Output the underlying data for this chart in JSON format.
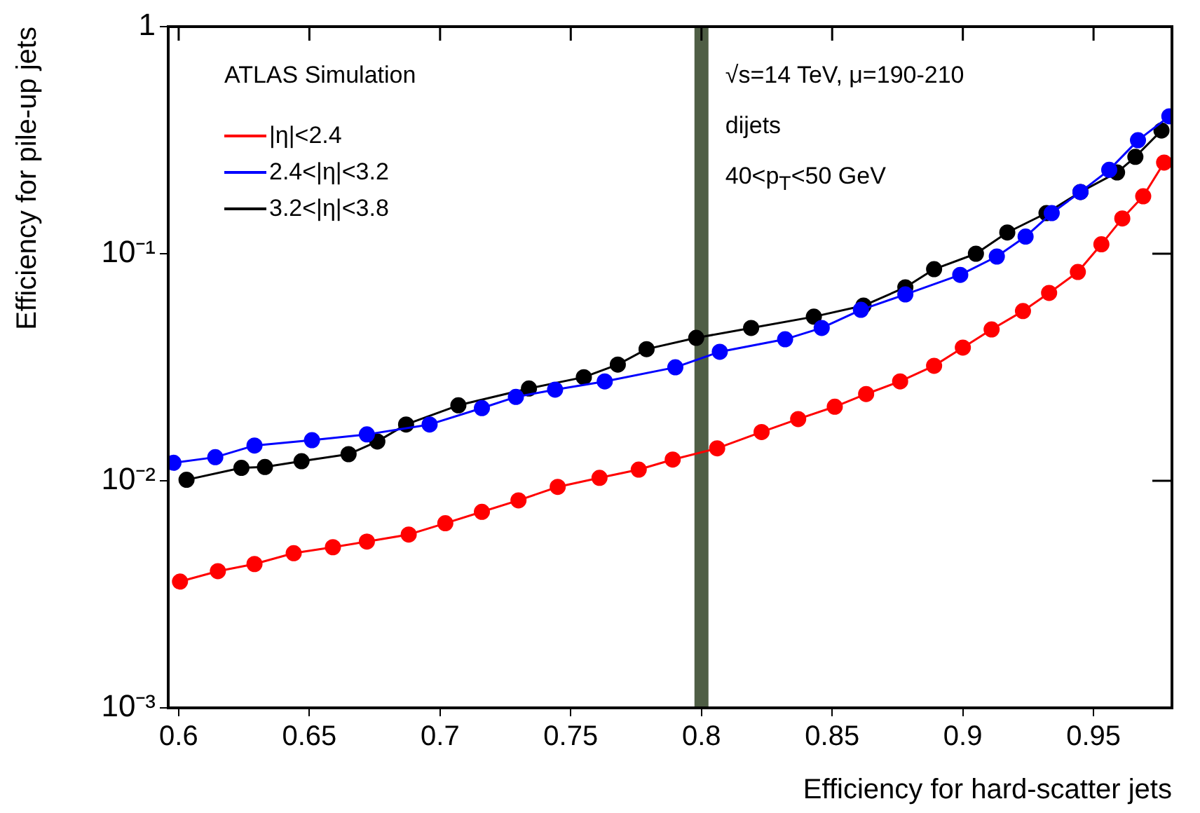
{
  "chart_data": {
    "type": "line",
    "xlabel": "Efficiency for hard-scatter jets",
    "ylabel": "Efficiency for pile-up jets",
    "annotations": [
      "ATLAS Simulation",
      "√s=14 TeV, μ=190-210",
      "dijets",
      "40<p$_{T}$<50 GeV"
    ],
    "log": "y",
    "grid": false,
    "legend": "top left",
    "marker": "circle",
    "line_style": "solid",
    "xlim": [
      0.596,
      0.98
    ],
    "xticks": [
      0.6,
      0.65,
      0.7,
      0.75,
      0.8,
      0.85,
      0.9,
      0.95
    ],
    "ylim": [
      0.001,
      1
    ],
    "yticks": [
      {
        "value": 0.001,
        "label": "10⁻³"
      },
      {
        "value": 0.01,
        "label": "10⁻²"
      },
      {
        "value": 0.1,
        "label": "10⁻¹"
      },
      1
    ],
    "ref_lines": [
      {
        "axis": "x",
        "value": 0.8,
        "color": "#4f5e45"
      }
    ],
    "series": [
      {
        "name": "|η|<2.4",
        "color": "#ff0000",
        "x": [
          0.6005,
          0.615,
          0.629,
          0.644,
          0.659,
          0.672,
          0.688,
          0.702,
          0.716,
          0.73,
          0.745,
          0.761,
          0.776,
          0.789,
          0.806,
          0.823,
          0.837,
          0.851,
          0.863,
          0.876,
          0.889,
          0.9,
          0.911,
          0.923,
          0.933,
          0.944,
          0.953,
          0.961,
          0.969,
          0.977
        ],
        "values": [
          0.0036,
          0.004,
          0.0043,
          0.0048,
          0.0051,
          0.0054,
          0.0058,
          0.0065,
          0.0073,
          0.0082,
          0.0094,
          0.0103,
          0.0112,
          0.0124,
          0.0139,
          0.0164,
          0.0187,
          0.0212,
          0.0241,
          0.0274,
          0.0321,
          0.0386,
          0.0464,
          0.0559,
          0.0672,
          0.0831,
          0.11,
          0.143,
          0.179,
          0.252
        ]
      },
      {
        "name": "2.4<|η|<3.2",
        "color": "#0000ff",
        "x": [
          0.598,
          0.614,
          0.629,
          0.651,
          0.672,
          0.696,
          0.716,
          0.729,
          0.744,
          0.763,
          0.79,
          0.807,
          0.832,
          0.846,
          0.861,
          0.878,
          0.899,
          0.913,
          0.924,
          0.934,
          0.945,
          0.956,
          0.967,
          0.979
        ],
        "values": [
          0.012,
          0.0127,
          0.0143,
          0.0151,
          0.016,
          0.0177,
          0.0209,
          0.0234,
          0.0252,
          0.0274,
          0.0316,
          0.037,
          0.042,
          0.0471,
          0.0566,
          0.0662,
          0.0807,
          0.0972,
          0.119,
          0.151,
          0.187,
          0.234,
          0.316,
          0.403
        ]
      },
      {
        "name": "3.2<|η|<3.8",
        "color": "#000000",
        "x": [
          0.603,
          0.624,
          0.633,
          0.647,
          0.665,
          0.676,
          0.687,
          0.707,
          0.734,
          0.755,
          0.768,
          0.779,
          0.798,
          0.819,
          0.843,
          0.862,
          0.878,
          0.889,
          0.905,
          0.917,
          0.932,
          0.945,
          0.959,
          0.966,
          0.976
        ],
        "values": [
          0.0101,
          0.0114,
          0.0115,
          0.0122,
          0.0131,
          0.0149,
          0.0177,
          0.0215,
          0.0255,
          0.0286,
          0.0325,
          0.038,
          0.0426,
          0.0471,
          0.0528,
          0.0591,
          0.0711,
          0.0855,
          0.1,
          0.124,
          0.151,
          0.187,
          0.228,
          0.267,
          0.349
        ]
      }
    ]
  }
}
